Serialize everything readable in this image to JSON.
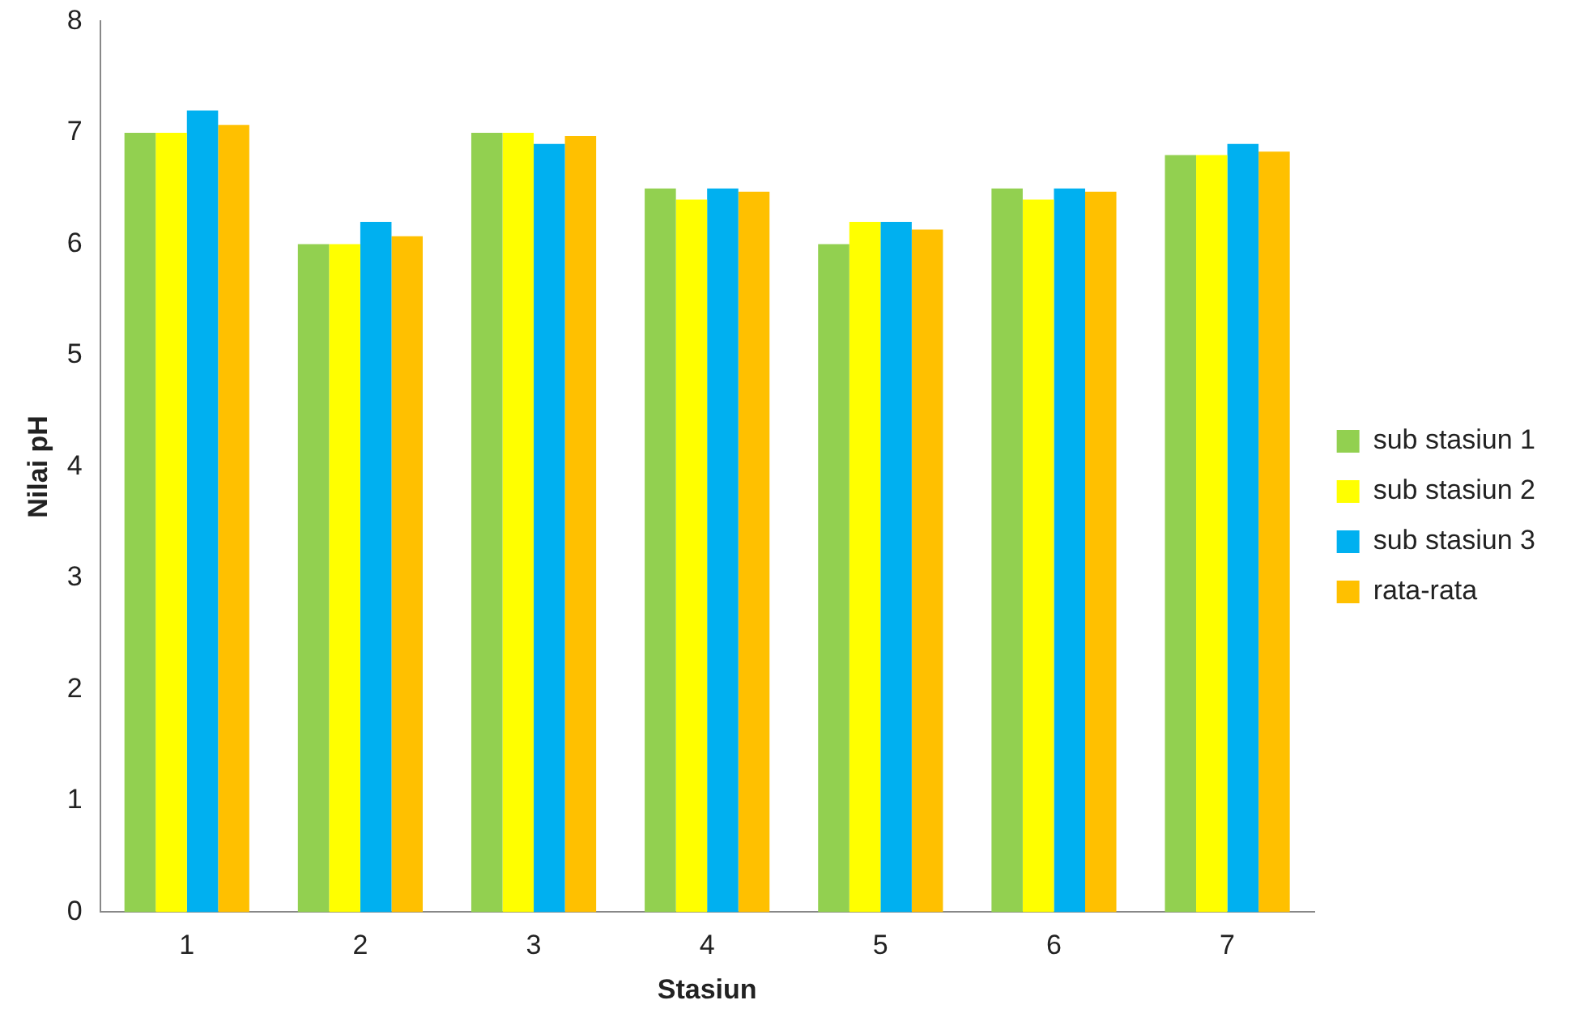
{
  "chart_data": {
    "type": "bar",
    "xlabel": "Stasiun",
    "ylabel": "Nilai pH",
    "categories": [
      "1",
      "2",
      "3",
      "4",
      "5",
      "6",
      "7"
    ],
    "series": [
      {
        "name": "sub stasiun 1",
        "color": "#92d050",
        "values": [
          7.0,
          6.0,
          7.0,
          6.5,
          6.0,
          6.5,
          6.8
        ]
      },
      {
        "name": "sub stasiun 2",
        "color": "#ffff00",
        "values": [
          7.0,
          6.0,
          7.0,
          6.4,
          6.2,
          6.4,
          6.8
        ]
      },
      {
        "name": "sub stasiun 3",
        "color": "#00b0f0",
        "values": [
          7.2,
          6.2,
          6.9,
          6.5,
          6.2,
          6.5,
          6.9
        ]
      },
      {
        "name": "rata-rata",
        "color": "#ffc000",
        "values": [
          7.07,
          6.07,
          6.97,
          6.47,
          6.13,
          6.47,
          6.83
        ]
      }
    ],
    "ylim": [
      0,
      8
    ],
    "yticks": [
      0,
      1,
      2,
      3,
      4,
      5,
      6,
      7,
      8
    ],
    "grid": false,
    "legend": "right"
  }
}
